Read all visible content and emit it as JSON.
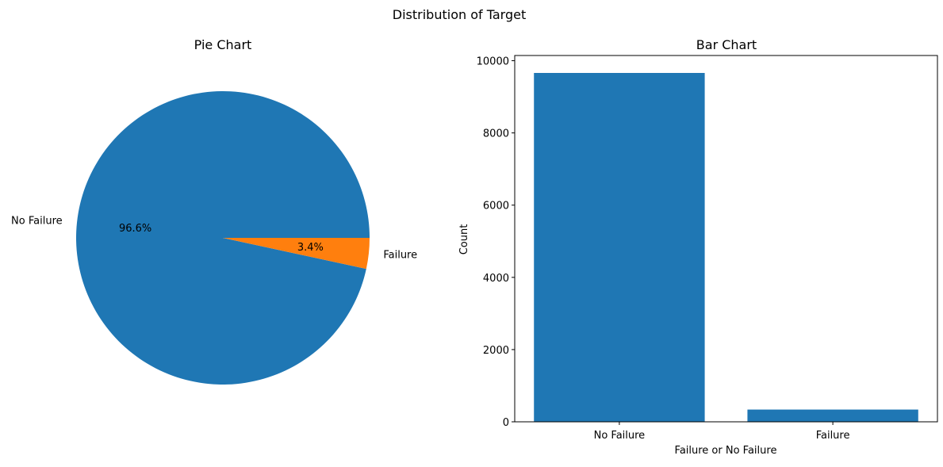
{
  "figure": {
    "suptitle": "Distribution of Target"
  },
  "chart_data": [
    {
      "type": "pie",
      "title": "Pie Chart",
      "categories": [
        "No Failure",
        "Failure"
      ],
      "values": [
        9661,
        339
      ],
      "percent_labels": [
        "96.6%",
        "3.4%"
      ],
      "colors": [
        "#1f77b4",
        "#ff7f0e"
      ],
      "start_angle_deg": 0,
      "direction": "counterclockwise"
    },
    {
      "type": "bar",
      "title": "Bar Chart",
      "categories": [
        "No Failure",
        "Failure"
      ],
      "values": [
        9661,
        339
      ],
      "color": "#1f77b4",
      "xlabel": "Failure or No Failure",
      "ylabel": "Count",
      "ylim": [
        0,
        10144
      ],
      "yticks": [
        0,
        2000,
        4000,
        6000,
        8000,
        10000
      ],
      "ytick_labels": [
        "0",
        "2000",
        "4000",
        "6000",
        "8000",
        "10000"
      ],
      "grid": false
    }
  ]
}
